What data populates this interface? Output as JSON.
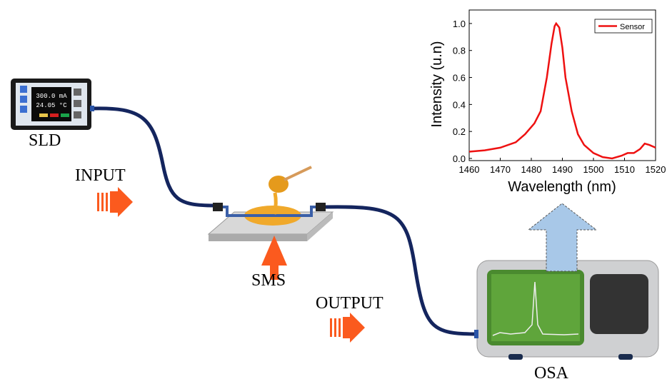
{
  "labels": {
    "source": "SLD",
    "input": "INPUT",
    "sensor": "SMS",
    "output": "OUTPUT",
    "analyzer": "OSA"
  },
  "source_display": {
    "current": "300.0 mA",
    "temperature": "24.05 °C"
  },
  "chart_data": {
    "type": "line",
    "xlabel": "Wavelength (nm)",
    "ylabel": "Intensity (u.n)",
    "x": [
      1460,
      1465,
      1470,
      1475,
      1478,
      1481,
      1483,
      1485,
      1486.5,
      1487.5,
      1488,
      1489,
      1490,
      1491,
      1493,
      1495,
      1497,
      1500,
      1503,
      1506,
      1509,
      1511,
      1513,
      1515,
      1516.5,
      1518,
      1520
    ],
    "series": [
      {
        "name": "Sensor",
        "color": "#ee1111",
        "values": [
          0.05,
          0.06,
          0.08,
          0.12,
          0.18,
          0.26,
          0.35,
          0.6,
          0.85,
          0.98,
          1.0,
          0.97,
          0.82,
          0.6,
          0.35,
          0.18,
          0.1,
          0.04,
          0.01,
          0.0,
          0.02,
          0.04,
          0.04,
          0.07,
          0.11,
          0.1,
          0.08
        ]
      }
    ],
    "xlim": [
      1460,
      1520
    ],
    "xticks": [
      1460,
      1470,
      1480,
      1490,
      1500,
      1510,
      1520
    ],
    "ylim": [
      0,
      1.1
    ],
    "yticks": [
      {
        "value": 0,
        "label": "0.0"
      },
      0.2,
      0.4,
      0.6,
      0.8,
      {
        "value": 1,
        "label": "1.0"
      }
    ],
    "legend": "upper right"
  }
}
